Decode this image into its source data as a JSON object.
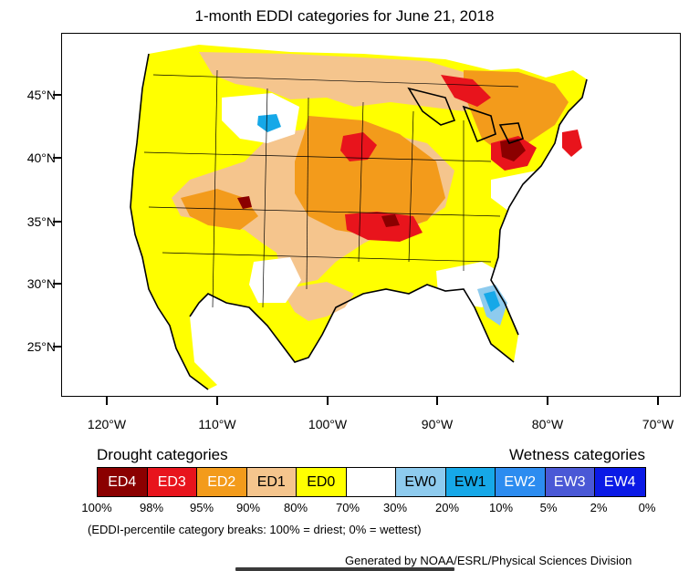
{
  "title": "1-month EDDI categories for June 21, 2018",
  "map": {
    "lat_labels": [
      "45°N",
      "40°N",
      "35°N",
      "30°N",
      "25°N"
    ],
    "lon_labels": [
      "120°W",
      "110°W",
      "100°W",
      "90°W",
      "80°W",
      "70°W"
    ]
  },
  "legend": {
    "drought_heading": "Drought categories",
    "wetness_heading": "Wetness categories",
    "categories": [
      {
        "label": "ED4",
        "color": "#8b0000",
        "text_color": "#ffffff"
      },
      {
        "label": "ED3",
        "color": "#e8141c",
        "text_color": "#ffffff"
      },
      {
        "label": "ED2",
        "color": "#f39b1b",
        "text_color": "#ffffff"
      },
      {
        "label": "ED1",
        "color": "#f5c58d",
        "text_color": "#000000"
      },
      {
        "label": "ED0",
        "color": "#ffff00",
        "text_color": "#000000"
      },
      {
        "label": "",
        "color": "#ffffff",
        "text_color": "#000000"
      },
      {
        "label": "EW0",
        "color": "#8ecbee",
        "text_color": "#000000"
      },
      {
        "label": "EW1",
        "color": "#16a8e8",
        "text_color": "#000000"
      },
      {
        "label": "EW2",
        "color": "#2c8cf0",
        "text_color": "#ffffff"
      },
      {
        "label": "EW3",
        "color": "#4a58d6",
        "text_color": "#ffffff"
      },
      {
        "label": "EW4",
        "color": "#0b1ae6",
        "text_color": "#ffffff"
      }
    ],
    "percentiles": [
      "100%",
      "98%",
      "95%",
      "90%",
      "80%",
      "70%",
      "30%",
      "20%",
      "10%",
      "5%",
      "2%",
      "0%"
    ],
    "note": "(EDDI-percentile category breaks: 100% = driest; 0% = wettest)"
  },
  "credit": "Generated by NOAA/ESRL/Physical Sciences Division"
}
